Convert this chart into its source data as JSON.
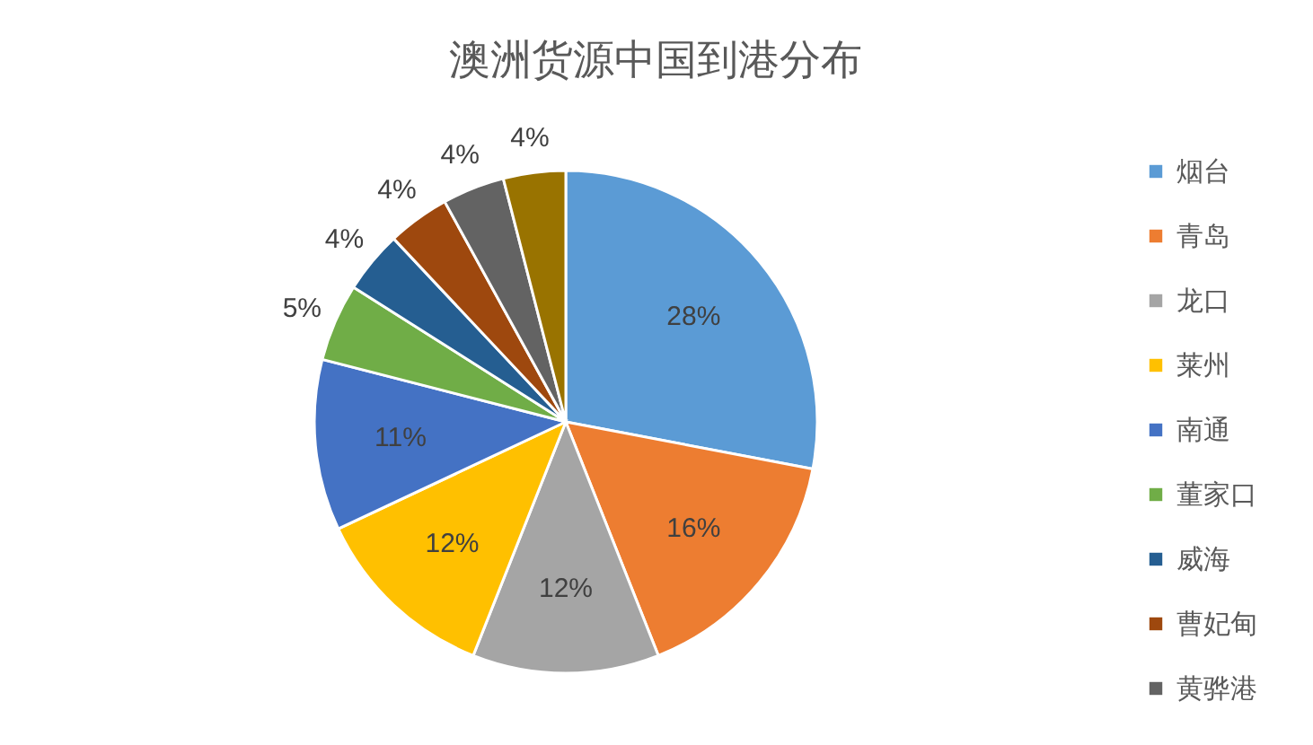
{
  "chart_data": {
    "type": "pie",
    "title": "澳洲货源中国到港分布",
    "categories": [
      "烟台",
      "青岛",
      "龙口",
      "莱州",
      "南通",
      "董家口",
      "威海",
      "曹妃甸",
      "黄骅港",
      null
    ],
    "values": [
      28,
      16,
      12,
      12,
      11,
      5,
      4,
      4,
      4,
      4
    ],
    "colors": [
      "#5b9bd5",
      "#ed7d31",
      "#a5a5a5",
      "#ffc000",
      "#4472c4",
      "#70ad47",
      "#255e91",
      "#9e480e",
      "#636363",
      "#997300"
    ],
    "value_labels": [
      "28%",
      "16%",
      "12%",
      "12%",
      "11%",
      "5%",
      "4%",
      "4%",
      "4%",
      "4%"
    ],
    "legend": "right"
  }
}
